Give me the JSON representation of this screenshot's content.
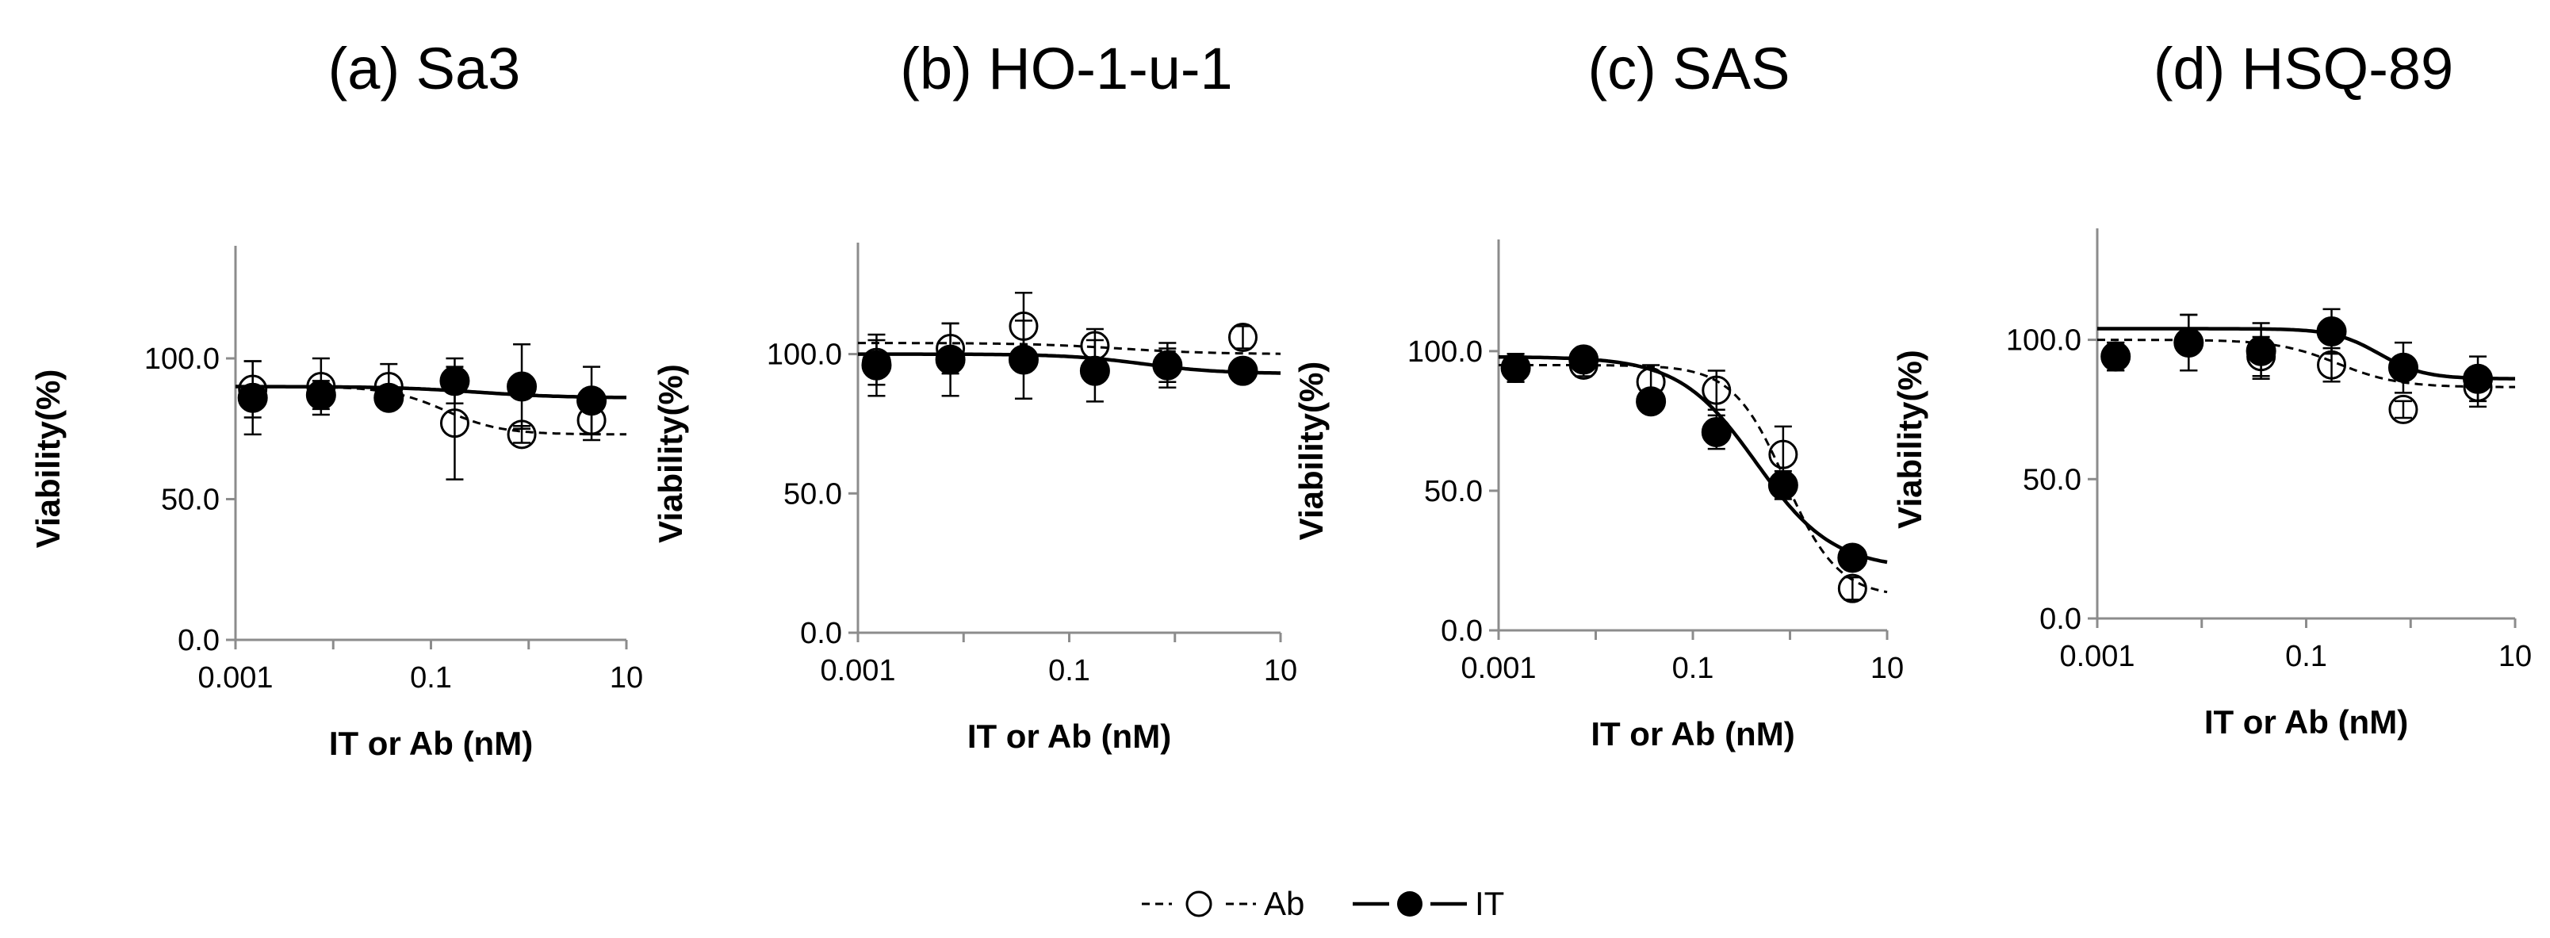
{
  "chart_data": [
    {
      "type": "scatter",
      "title": "(a) Sa3",
      "xlabel": "IT  or Ab (nM)",
      "ylabel": "Viability(%)",
      "xscale": "log",
      "xlim": [
        0.001,
        10
      ],
      "ylim": [
        0,
        140
      ],
      "xticks": [
        "0.001",
        "0.1",
        "10"
      ],
      "yticks": [
        "0.0",
        "50.0",
        "100.0"
      ],
      "series": [
        {
          "name": "Ab",
          "marker": "open-circle",
          "line": "dashed",
          "x": [
            0.0015,
            0.0075,
            0.037,
            0.175,
            0.85,
            4.4
          ],
          "y": [
            89,
            90,
            90,
            77,
            73,
            78
          ],
          "err": [
            10,
            10,
            8,
            20,
            3,
            7
          ],
          "fit": {
            "top": 90,
            "bottom": 73,
            "ec50": 0.14,
            "hill": 1.5
          }
        },
        {
          "name": "IT",
          "marker": "filled-circle",
          "line": "solid",
          "x": [
            0.0015,
            0.0075,
            0.037,
            0.175,
            0.85,
            4.4
          ],
          "y": [
            86,
            87,
            86,
            92,
            90,
            85
          ],
          "err": [
            13,
            5,
            4,
            8,
            15,
            12
          ],
          "fit": {
            "top": 90,
            "bottom": 86,
            "ec50": 0.3,
            "hill": 1
          }
        }
      ]
    },
    {
      "type": "scatter",
      "title": "(b) HO-1-u-1",
      "xlabel": "IT or Ab (nM)",
      "ylabel": "Viability(%)",
      "xscale": "log",
      "xlim": [
        0.001,
        10
      ],
      "ylim": [
        0,
        140
      ],
      "xticks": [
        "0.001",
        "0.1",
        "10"
      ],
      "yticks": [
        "0.0",
        "50.0",
        "100.0"
      ],
      "series": [
        {
          "name": "Ab",
          "marker": "open-circle",
          "line": "dashed",
          "x": [
            0.0015,
            0.0075,
            0.037,
            0.175,
            0.85,
            4.4
          ],
          "y": [
            97,
            102,
            110,
            103,
            96,
            106
          ],
          "err": [
            8,
            9,
            12,
            6,
            8,
            4
          ],
          "fit": {
            "top": 104,
            "bottom": 100,
            "ec50": 0.3,
            "hill": 1
          }
        },
        {
          "name": "IT",
          "marker": "filled-circle",
          "line": "solid",
          "x": [
            0.0015,
            0.0075,
            0.037,
            0.175,
            0.85,
            4.4
          ],
          "y": [
            96,
            98,
            98,
            94,
            96,
            94
          ],
          "err": [
            11,
            13,
            14,
            11,
            6,
            3
          ],
          "fit": {
            "top": 100,
            "bottom": 93,
            "ec50": 0.5,
            "hill": 1.2
          }
        }
      ]
    },
    {
      "type": "scatter",
      "title": "(c) SAS",
      "xlabel": "IT or Ab (nM)",
      "ylabel": "Viability(%)",
      "xscale": "log",
      "xlim": [
        0.001,
        10
      ],
      "ylim": [
        0,
        140
      ],
      "xticks": [
        "0.001",
        "0.1",
        "10"
      ],
      "yticks": [
        "0.0",
        "50.0",
        "100.0"
      ],
      "series": [
        {
          "name": "Ab",
          "marker": "open-circle",
          "line": "dashed",
          "x": [
            0.0015,
            0.0075,
            0.037,
            0.175,
            0.85,
            4.4
          ],
          "y": [
            94,
            95,
            89,
            86,
            63,
            15
          ],
          "err": [
            5,
            4,
            6,
            7,
            10,
            4
          ],
          "fit": {
            "top": 95,
            "bottom": 12,
            "ec50": 0.9,
            "hill": 1.6
          }
        },
        {
          "name": "IT",
          "marker": "filled-circle",
          "line": "solid",
          "x": [
            0.0015,
            0.0075,
            0.037,
            0.175,
            0.85,
            4.4
          ],
          "y": [
            94,
            97,
            82,
            71,
            52,
            26
          ],
          "err": [
            5,
            4,
            4,
            6,
            5,
            3
          ],
          "fit": {
            "top": 98,
            "bottom": 22,
            "ec50": 0.45,
            "hill": 1.1
          }
        }
      ]
    },
    {
      "type": "scatter",
      "title": "(d) HSQ-89",
      "xlabel": "IT or Ab (nM)",
      "ylabel": "Viability(%)",
      "xscale": "log",
      "xlim": [
        0.001,
        10
      ],
      "ylim": [
        0,
        140
      ],
      "xticks": [
        "0.001",
        "0.1",
        "10"
      ],
      "yticks": [
        "0.0",
        "50.0",
        "100.0"
      ],
      "series": [
        {
          "name": "Ab",
          "marker": "open-circle",
          "line": "dashed",
          "x": [
            0.0015,
            0.0075,
            0.037,
            0.175,
            0.85,
            4.4
          ],
          "y": [
            94,
            99,
            94,
            91,
            75,
            83
          ],
          "err": [
            5,
            10,
            7,
            6,
            3,
            7
          ],
          "fit": {
            "top": 100,
            "bottom": 83,
            "ec50": 0.2,
            "hill": 1.5
          }
        },
        {
          "name": "IT",
          "marker": "filled-circle",
          "line": "solid",
          "x": [
            0.0015,
            0.0075,
            0.037,
            0.175,
            0.85,
            4.4
          ],
          "y": [
            94,
            99,
            96,
            103,
            90,
            86
          ],
          "err": [
            5,
            10,
            10,
            8,
            9,
            8
          ],
          "fit": {
            "top": 104,
            "bottom": 86,
            "ec50": 0.5,
            "hill": 2
          }
        }
      ]
    }
  ],
  "legend": {
    "items": [
      {
        "label": "Ab",
        "marker": "open-circle",
        "line": "dashed"
      },
      {
        "label": "IT",
        "marker": "filled-circle",
        "line": "solid"
      }
    ]
  }
}
